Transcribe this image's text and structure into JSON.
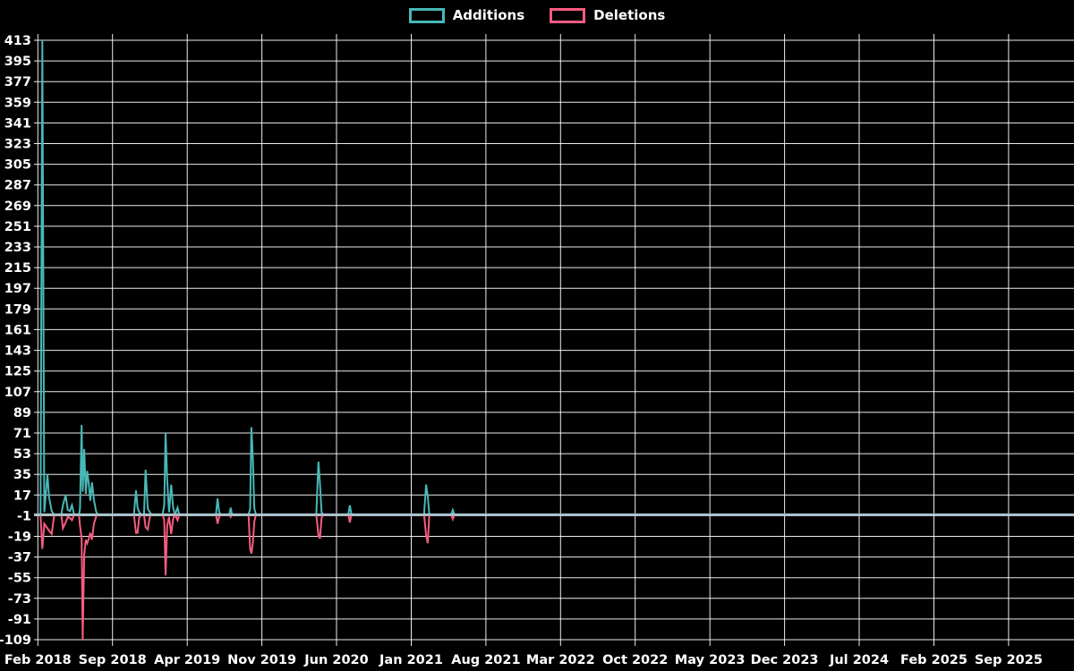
{
  "legend": {
    "items": [
      {
        "label": "Additions",
        "color": "#48b8b8"
      },
      {
        "label": "Deletions",
        "color": "#f75c80"
      }
    ]
  },
  "chart_data": {
    "type": "line",
    "title": "",
    "xlabel": "",
    "ylabel": "",
    "x_unit": "months since Feb 2018",
    "background": "#000000",
    "grid": true,
    "grid_color": "#ffffff",
    "text_color": "#ffffff",
    "zero_line_color": "#a7c4cf",
    "ylim": [
      -109,
      413
    ],
    "y_ticks": [
      413,
      395,
      377,
      359,
      341,
      323,
      305,
      287,
      269,
      251,
      233,
      215,
      197,
      179,
      161,
      143,
      125,
      107,
      89,
      71,
      53,
      35,
      17,
      -1,
      -19,
      -37,
      -55,
      -73,
      -91,
      -109
    ],
    "x_tick_months": [
      0,
      7,
      14,
      21,
      28,
      35,
      42,
      49,
      56,
      63,
      70,
      77,
      84,
      91
    ],
    "x_tick_labels": [
      "Feb 2018",
      "Sep 2018",
      "Apr 2019",
      "Nov 2019",
      "Jun 2020",
      "Jan 2021",
      "Aug 2021",
      "Mar 2022",
      "Oct 2022",
      "May 2023",
      "Dec 2023",
      "Jul 2024",
      "Feb 2025",
      "Sep 2025"
    ],
    "legend_position": "top-center",
    "series": [
      {
        "name": "Additions",
        "color": "#48b8b8",
        "points": [
          [
            -0.3,
            0
          ],
          [
            0.25,
            0
          ],
          [
            0.42,
            413
          ],
          [
            0.6,
            2
          ],
          [
            0.9,
            35
          ],
          [
            1.05,
            15
          ],
          [
            1.3,
            3
          ],
          [
            1.5,
            0
          ],
          [
            2.2,
            0
          ],
          [
            2.35,
            8
          ],
          [
            2.6,
            17
          ],
          [
            2.8,
            4
          ],
          [
            3.0,
            3
          ],
          [
            3.2,
            8
          ],
          [
            3.4,
            0
          ],
          [
            3.85,
            0
          ],
          [
            3.95,
            5
          ],
          [
            4.1,
            78
          ],
          [
            4.2,
            20
          ],
          [
            4.35,
            57
          ],
          [
            4.5,
            18
          ],
          [
            4.62,
            38
          ],
          [
            4.78,
            26
          ],
          [
            4.92,
            12
          ],
          [
            5.08,
            28
          ],
          [
            5.25,
            13
          ],
          [
            5.45,
            3
          ],
          [
            5.6,
            0
          ],
          [
            9.0,
            0
          ],
          [
            9.2,
            21
          ],
          [
            9.35,
            6
          ],
          [
            9.5,
            2
          ],
          [
            9.7,
            0
          ],
          [
            9.95,
            0
          ],
          [
            10.1,
            39
          ],
          [
            10.3,
            5
          ],
          [
            10.5,
            2
          ],
          [
            10.65,
            0
          ],
          [
            11.7,
            0
          ],
          [
            11.85,
            8
          ],
          [
            11.97,
            71
          ],
          [
            12.12,
            30
          ],
          [
            12.3,
            2
          ],
          [
            12.5,
            26
          ],
          [
            12.68,
            6
          ],
          [
            12.85,
            0
          ],
          [
            13.1,
            6
          ],
          [
            13.25,
            0
          ],
          [
            16.7,
            0
          ],
          [
            16.85,
            14
          ],
          [
            17.0,
            2
          ],
          [
            17.15,
            0
          ],
          [
            17.95,
            0
          ],
          [
            18.08,
            6
          ],
          [
            18.2,
            0
          ],
          [
            19.75,
            0
          ],
          [
            19.9,
            5
          ],
          [
            20.02,
            76
          ],
          [
            20.15,
            49
          ],
          [
            20.3,
            5
          ],
          [
            20.45,
            0
          ],
          [
            26.1,
            0
          ],
          [
            26.3,
            46
          ],
          [
            26.45,
            27
          ],
          [
            26.6,
            2
          ],
          [
            26.75,
            0
          ],
          [
            29.1,
            0
          ],
          [
            29.25,
            8
          ],
          [
            29.4,
            0
          ],
          [
            36.2,
            0
          ],
          [
            36.4,
            26
          ],
          [
            36.55,
            16
          ],
          [
            36.7,
            0
          ],
          [
            38.75,
            0
          ],
          [
            38.9,
            4
          ],
          [
            39.05,
            0
          ],
          [
            39.3,
            0
          ]
        ]
      },
      {
        "name": "Deletions",
        "color": "#f75c80",
        "points": [
          [
            -0.3,
            0
          ],
          [
            0.25,
            0
          ],
          [
            0.42,
            -30
          ],
          [
            0.6,
            -8
          ],
          [
            0.9,
            -12
          ],
          [
            1.05,
            -14
          ],
          [
            1.3,
            -17
          ],
          [
            1.5,
            -2
          ],
          [
            1.65,
            0
          ],
          [
            2.2,
            0
          ],
          [
            2.35,
            -12
          ],
          [
            2.6,
            -7
          ],
          [
            2.8,
            -2
          ],
          [
            3.0,
            -3
          ],
          [
            3.2,
            -5
          ],
          [
            3.4,
            0
          ],
          [
            3.85,
            0
          ],
          [
            3.95,
            -10
          ],
          [
            4.1,
            -20
          ],
          [
            4.2,
            -109
          ],
          [
            4.35,
            -35
          ],
          [
            4.5,
            -22
          ],
          [
            4.62,
            -25
          ],
          [
            4.78,
            -21
          ],
          [
            4.92,
            -16
          ],
          [
            5.08,
            -22
          ],
          [
            5.25,
            -8
          ],
          [
            5.45,
            -2
          ],
          [
            5.6,
            0
          ],
          [
            9.0,
            0
          ],
          [
            9.2,
            -16
          ],
          [
            9.35,
            -16
          ],
          [
            9.5,
            -3
          ],
          [
            9.7,
            0
          ],
          [
            9.95,
            0
          ],
          [
            10.1,
            -11
          ],
          [
            10.3,
            -13
          ],
          [
            10.5,
            -2
          ],
          [
            10.65,
            0
          ],
          [
            11.7,
            0
          ],
          [
            11.85,
            -5
          ],
          [
            11.97,
            -53
          ],
          [
            12.12,
            -10
          ],
          [
            12.3,
            -2
          ],
          [
            12.5,
            -17
          ],
          [
            12.68,
            -4
          ],
          [
            12.85,
            0
          ],
          [
            13.1,
            -5
          ],
          [
            13.25,
            0
          ],
          [
            16.7,
            0
          ],
          [
            16.85,
            -8
          ],
          [
            17.0,
            -2
          ],
          [
            17.15,
            0
          ],
          [
            17.95,
            0
          ],
          [
            18.08,
            -2
          ],
          [
            18.2,
            0
          ],
          [
            19.75,
            0
          ],
          [
            19.9,
            -30
          ],
          [
            20.02,
            -34
          ],
          [
            20.15,
            -25
          ],
          [
            20.3,
            -6
          ],
          [
            20.45,
            0
          ],
          [
            26.1,
            0
          ],
          [
            26.3,
            -18
          ],
          [
            26.45,
            -21
          ],
          [
            26.6,
            -3
          ],
          [
            26.75,
            0
          ],
          [
            29.1,
            0
          ],
          [
            29.25,
            -7
          ],
          [
            29.4,
            0
          ],
          [
            36.2,
            0
          ],
          [
            36.4,
            -18
          ],
          [
            36.55,
            -25
          ],
          [
            36.7,
            0
          ],
          [
            38.75,
            0
          ],
          [
            38.9,
            -4
          ],
          [
            39.05,
            0
          ],
          [
            39.3,
            0
          ]
        ]
      }
    ]
  }
}
